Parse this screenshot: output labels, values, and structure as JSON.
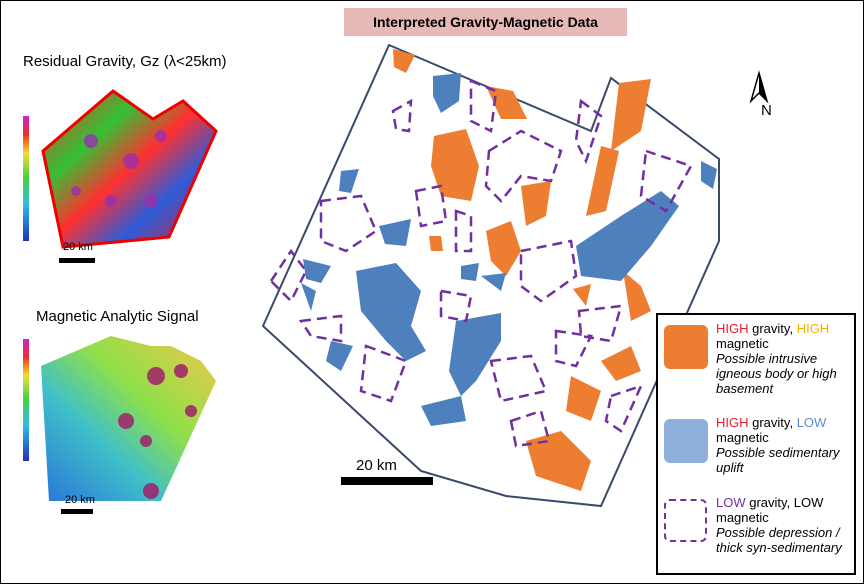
{
  "title": "Interpreted Gravity-Magnetic Data",
  "panels": [
    {
      "title": "Residual Gravity, Gz (λ<25km)",
      "scale_label": "20 km"
    },
    {
      "title": "Magnetic Analytic Signal",
      "scale_label": "20 km"
    }
  ],
  "map": {
    "scale_label": "20 km",
    "north_label": "N"
  },
  "legend": [
    {
      "parts": [
        "HIGH",
        "gravity,",
        "HIGH",
        "magnetic"
      ],
      "description": "Possible intrusive igneous body or high basement"
    },
    {
      "parts": [
        "HIGH",
        "gravity,",
        "LOW",
        "magnetic"
      ],
      "description": "Possible sedimentary uplift"
    },
    {
      "parts": [
        "LOW",
        "gravity, LOW",
        "magnetic"
      ],
      "description": "Possible depression / thick syn-sedimentary"
    }
  ]
}
